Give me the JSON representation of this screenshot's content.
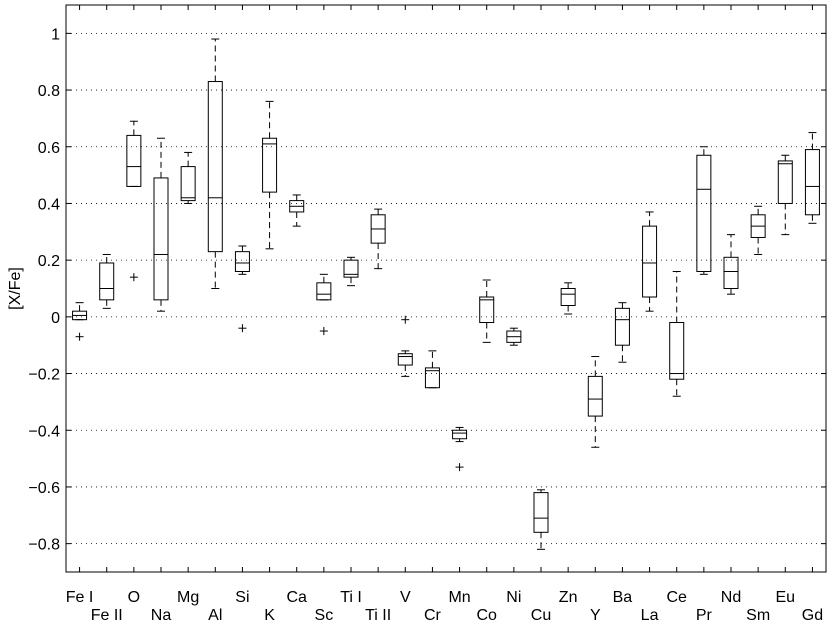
{
  "chart_data": {
    "type": "box",
    "title": "",
    "xlabel": "",
    "ylabel": "[X/Fe]",
    "ylim": [
      -0.9,
      1.1
    ],
    "yticks": [
      -0.8,
      -0.6,
      -0.4,
      -0.2,
      0,
      0.2,
      0.4,
      0.6,
      0.8,
      1
    ],
    "ytick_labels": [
      "−0.8",
      "−0.6",
      "−0.4",
      "−0.2",
      "0",
      "0.2",
      "0.4",
      "0.6",
      "0.8",
      "1"
    ],
    "grid": "horizontal dotted",
    "categories": [
      "Fe I",
      "Fe II",
      "O",
      "Na",
      "Mg",
      "Al",
      "Si",
      "K",
      "Ca",
      "Sc",
      "Ti I",
      "Ti II",
      "V",
      "Cr",
      "Mn",
      "Co",
      "Ni",
      "Cu",
      "Zn",
      "Y",
      "Ba",
      "La",
      "Ce",
      "Pr",
      "Nd",
      "Sm",
      "Eu",
      "Gd"
    ],
    "boxes": [
      {
        "label": "Fe I",
        "min": -0.01,
        "q1": -0.01,
        "median": 0.005,
        "q3": 0.02,
        "max": 0.05,
        "outliers": [
          -0.07
        ]
      },
      {
        "label": "Fe II",
        "min": 0.03,
        "q1": 0.06,
        "median": 0.1,
        "q3": 0.19,
        "max": 0.22,
        "outliers": []
      },
      {
        "label": "O",
        "min": 0.46,
        "q1": 0.46,
        "median": 0.53,
        "q3": 0.64,
        "max": 0.69,
        "outliers": [
          0.14
        ]
      },
      {
        "label": "Na",
        "min": 0.02,
        "q1": 0.06,
        "median": 0.22,
        "q3": 0.49,
        "max": 0.63,
        "outliers": []
      },
      {
        "label": "Mg",
        "min": 0.4,
        "q1": 0.41,
        "median": 0.42,
        "q3": 0.53,
        "max": 0.58,
        "outliers": []
      },
      {
        "label": "Al",
        "min": 0.1,
        "q1": 0.23,
        "median": 0.42,
        "q3": 0.83,
        "max": 0.98,
        "outliers": []
      },
      {
        "label": "Si",
        "min": 0.15,
        "q1": 0.16,
        "median": 0.19,
        "q3": 0.23,
        "max": 0.25,
        "outliers": [
          -0.04
        ]
      },
      {
        "label": "K",
        "min": 0.24,
        "q1": 0.44,
        "median": 0.61,
        "q3": 0.63,
        "max": 0.76,
        "outliers": []
      },
      {
        "label": "Ca",
        "min": 0.32,
        "q1": 0.37,
        "median": 0.39,
        "q3": 0.41,
        "max": 0.43,
        "outliers": []
      },
      {
        "label": "Sc",
        "min": 0.06,
        "q1": 0.06,
        "median": 0.08,
        "q3": 0.12,
        "max": 0.15,
        "outliers": [
          -0.05
        ]
      },
      {
        "label": "Ti I",
        "min": 0.11,
        "q1": 0.14,
        "median": 0.15,
        "q3": 0.2,
        "max": 0.21,
        "outliers": []
      },
      {
        "label": "Ti II",
        "min": 0.17,
        "q1": 0.26,
        "median": 0.31,
        "q3": 0.36,
        "max": 0.38,
        "outliers": []
      },
      {
        "label": "V",
        "min": -0.21,
        "q1": -0.17,
        "median": -0.14,
        "q3": -0.13,
        "max": -0.12,
        "outliers": [
          -0.01
        ]
      },
      {
        "label": "Cr",
        "min": -0.25,
        "q1": -0.25,
        "median": -0.19,
        "q3": -0.18,
        "max": -0.12,
        "outliers": []
      },
      {
        "label": "Mn",
        "min": -0.44,
        "q1": -0.43,
        "median": -0.41,
        "q3": -0.4,
        "max": -0.39,
        "outliers": [
          -0.53
        ]
      },
      {
        "label": "Co",
        "min": -0.09,
        "q1": -0.02,
        "median": 0.06,
        "q3": 0.07,
        "max": 0.13,
        "outliers": []
      },
      {
        "label": "Ni",
        "min": -0.1,
        "q1": -0.09,
        "median": -0.07,
        "q3": -0.05,
        "max": -0.04,
        "outliers": []
      },
      {
        "label": "Cu",
        "min": -0.82,
        "q1": -0.76,
        "median": -0.71,
        "q3": -0.62,
        "max": -0.61,
        "outliers": []
      },
      {
        "label": "Zn",
        "min": 0.01,
        "q1": 0.04,
        "median": 0.08,
        "q3": 0.1,
        "max": 0.12,
        "outliers": []
      },
      {
        "label": "Y",
        "min": -0.46,
        "q1": -0.35,
        "median": -0.29,
        "q3": -0.21,
        "max": -0.14,
        "outliers": []
      },
      {
        "label": "Ba",
        "min": -0.16,
        "q1": -0.1,
        "median": -0.01,
        "q3": 0.03,
        "max": 0.05,
        "outliers": []
      },
      {
        "label": "La",
        "min": 0.02,
        "q1": 0.07,
        "median": 0.19,
        "q3": 0.32,
        "max": 0.37,
        "outliers": []
      },
      {
        "label": "Ce",
        "min": -0.28,
        "q1": -0.22,
        "median": -0.2,
        "q3": -0.02,
        "max": 0.16,
        "outliers": []
      },
      {
        "label": "Pr",
        "min": 0.15,
        "q1": 0.16,
        "median": 0.45,
        "q3": 0.57,
        "max": 0.6,
        "outliers": []
      },
      {
        "label": "Nd",
        "min": 0.08,
        "q1": 0.1,
        "median": 0.16,
        "q3": 0.21,
        "max": 0.29,
        "outliers": []
      },
      {
        "label": "Sm",
        "min": 0.22,
        "q1": 0.28,
        "median": 0.32,
        "q3": 0.36,
        "max": 0.39,
        "outliers": []
      },
      {
        "label": "Eu",
        "min": 0.29,
        "q1": 0.4,
        "median": 0.54,
        "q3": 0.55,
        "max": 0.57,
        "outliers": []
      },
      {
        "label": "Gd",
        "min": 0.33,
        "q1": 0.36,
        "median": 0.46,
        "q3": 0.59,
        "max": 0.65,
        "outliers": []
      }
    ],
    "colors": {
      "box": "#000000",
      "grid": "#000000",
      "background": "#ffffff"
    }
  }
}
